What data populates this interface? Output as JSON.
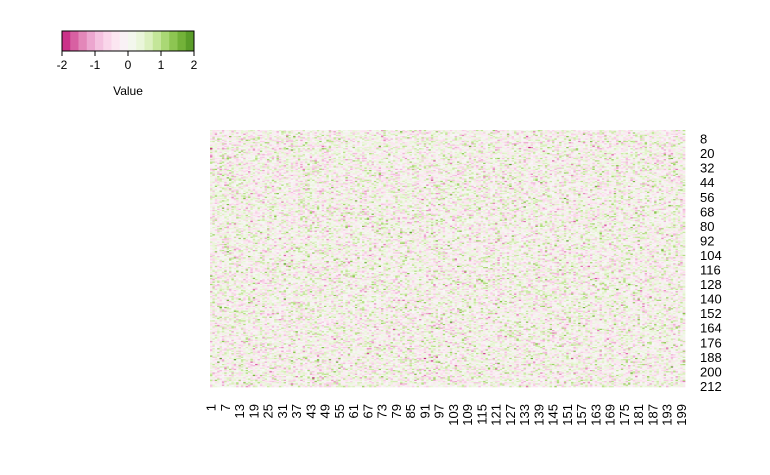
{
  "chart_data": {
    "type": "heatmap",
    "n_rows": 212,
    "n_cols": 200,
    "row_tick_labels": [
      "8",
      "20",
      "32",
      "44",
      "56",
      "68",
      "80",
      "92",
      "104",
      "116",
      "128",
      "140",
      "152",
      "164",
      "176",
      "188",
      "200",
      "212"
    ],
    "col_tick_labels": [
      "1",
      "7",
      "13",
      "19",
      "25",
      "31",
      "37",
      "43",
      "49",
      "55",
      "61",
      "67",
      "73",
      "79",
      "85",
      "91",
      "97",
      "103",
      "109",
      "115",
      "121",
      "127",
      "133",
      "139",
      "145",
      "151",
      "157",
      "163",
      "169",
      "175",
      "181",
      "187",
      "193",
      "199"
    ],
    "value_range": [
      -2,
      2
    ],
    "value_distribution": "random noise, mean 0, sd 0.5",
    "color_scale": [
      "#c51b7d",
      "#de77ae",
      "#f1b6da",
      "#fde0ef",
      "#f7f7f7",
      "#e6f5d0",
      "#b8e186",
      "#7fbc41",
      "#4d9221"
    ],
    "legend": {
      "title": "Value",
      "ticks": [
        "-2",
        "-1",
        "0",
        "1",
        "2"
      ],
      "placement": "top-left"
    }
  }
}
